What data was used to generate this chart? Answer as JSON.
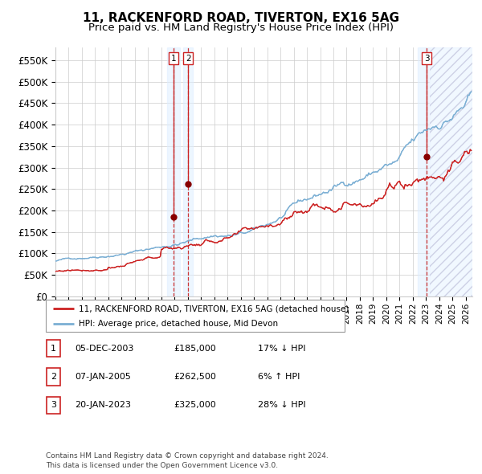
{
  "title": "11, RACKENFORD ROAD, TIVERTON, EX16 5AG",
  "subtitle": "Price paid vs. HM Land Registry's House Price Index (HPI)",
  "xlim_start": 1995.0,
  "xlim_end": 2026.5,
  "ylim": [
    0,
    580000
  ],
  "yticks": [
    0,
    50000,
    100000,
    150000,
    200000,
    250000,
    300000,
    350000,
    400000,
    450000,
    500000,
    550000
  ],
  "ytick_labels": [
    "£0",
    "£50K",
    "£100K",
    "£150K",
    "£200K",
    "£250K",
    "£300K",
    "£350K",
    "£400K",
    "£450K",
    "£500K",
    "£550K"
  ],
  "sale_dates": [
    2003.92,
    2005.03,
    2023.05
  ],
  "sale_prices": [
    185000,
    262500,
    325000
  ],
  "sale_labels": [
    "1",
    "2",
    "3"
  ],
  "legend_line1": "11, RACKENFORD ROAD, TIVERTON, EX16 5AG (detached house)",
  "legend_line2": "HPI: Average price, detached house, Mid Devon",
  "table_rows": [
    [
      "1",
      "05-DEC-2003",
      "£185,000",
      "17% ↓ HPI"
    ],
    [
      "2",
      "07-JAN-2005",
      "£262,500",
      "6% ↑ HPI"
    ],
    [
      "3",
      "20-JAN-2023",
      "£325,000",
      "28% ↓ HPI"
    ]
  ],
  "footer": "Contains HM Land Registry data © Crown copyright and database right 2024.\nThis data is licensed under the Open Government Licence v3.0.",
  "hpi_color": "#7bafd4",
  "price_color": "#cc2222",
  "sale_dot_color": "#880000",
  "highlight_color": "#ddeeff",
  "hatch_color": "#ccccee",
  "grid_color": "#cccccc",
  "title_fontsize": 11,
  "subtitle_fontsize": 9.5,
  "axis_fontsize": 8.5,
  "xtick_fontsize": 7.5
}
